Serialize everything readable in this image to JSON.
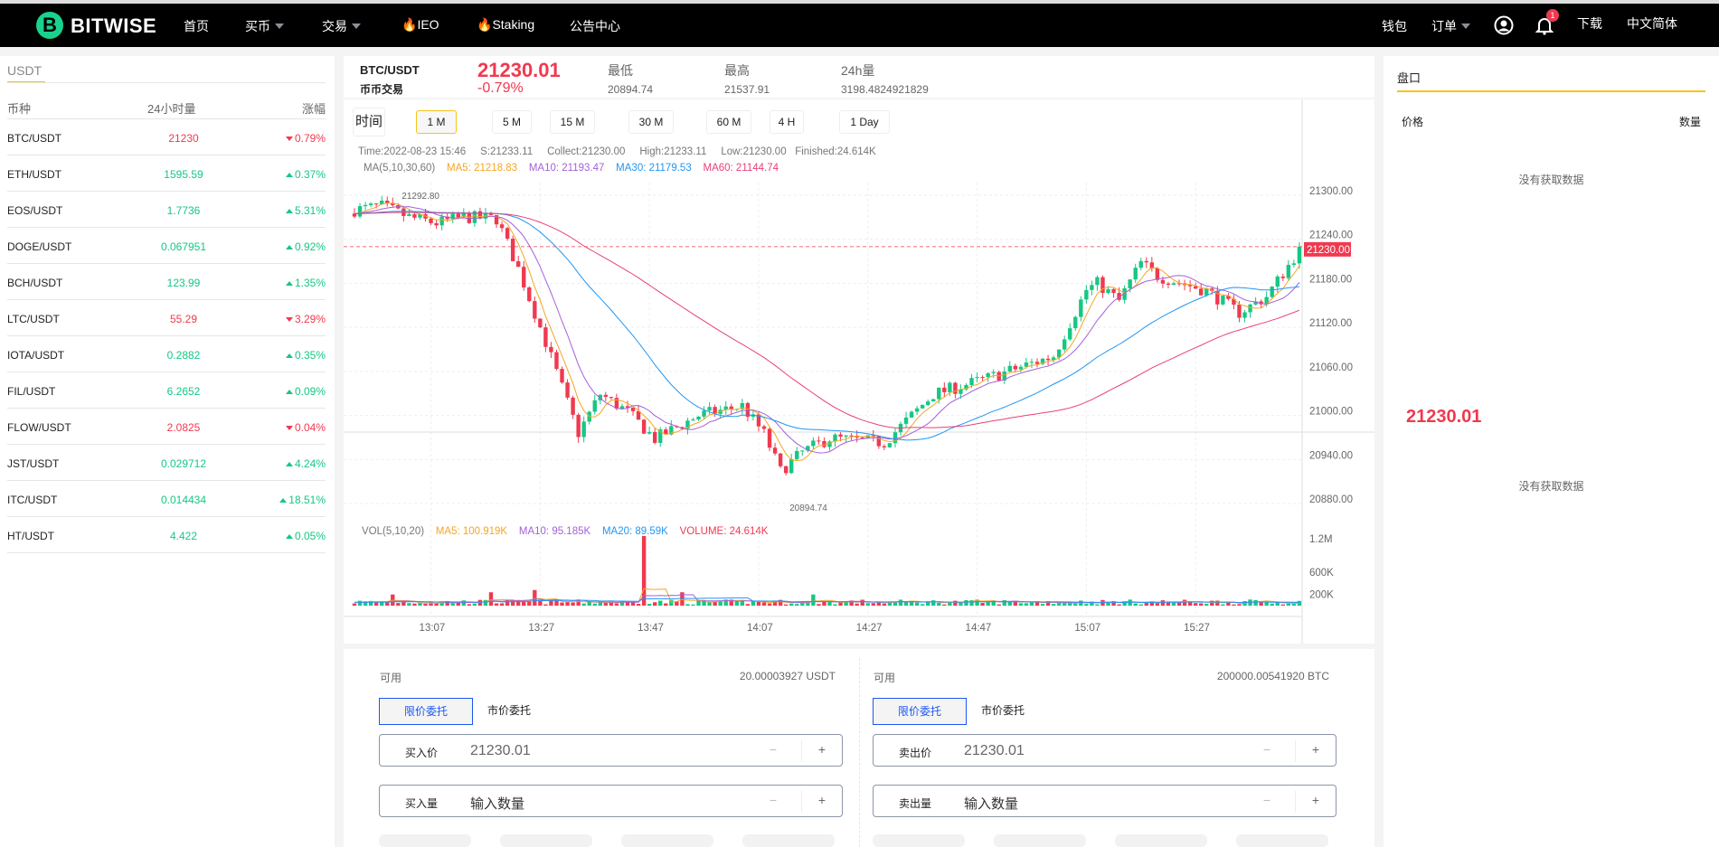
{
  "nav": {
    "brand": "BITWISE",
    "items": [
      "首页",
      "买币",
      "交易",
      "IEO",
      "Staking",
      "公告中心"
    ],
    "wallet": "钱包",
    "orders": "订单",
    "notif_count": "1",
    "download": "下载",
    "language": "中文简体"
  },
  "market": {
    "tab": "USDT",
    "headers": [
      "币种",
      "24小时量",
      "涨幅"
    ],
    "rows": [
      {
        "pair": "BTC/USDT",
        "value": "21230",
        "change": "0.79%",
        "dir": "dn"
      },
      {
        "pair": "ETH/USDT",
        "value": "1595.59",
        "change": "0.37%",
        "dir": "up"
      },
      {
        "pair": "EOS/USDT",
        "value": "1.7736",
        "change": "5.31%",
        "dir": "up"
      },
      {
        "pair": "DOGE/USDT",
        "value": "0.067951",
        "change": "0.92%",
        "dir": "up"
      },
      {
        "pair": "BCH/USDT",
        "value": "123.99",
        "change": "1.35%",
        "dir": "up"
      },
      {
        "pair": "LTC/USDT",
        "value": "55.29",
        "change": "3.29%",
        "dir": "dn"
      },
      {
        "pair": "IOTA/USDT",
        "value": "0.2882",
        "change": "0.35%",
        "dir": "up"
      },
      {
        "pair": "FIL/USDT",
        "value": "6.2652",
        "change": "0.09%",
        "dir": "up"
      },
      {
        "pair": "FLOW/USDT",
        "value": "2.0825",
        "change": "0.04%",
        "dir": "dn"
      },
      {
        "pair": "JST/USDT",
        "value": "0.029712",
        "change": "4.24%",
        "dir": "up"
      },
      {
        "pair": "ITC/USDT",
        "value": "0.014434",
        "change": "18.51%",
        "dir": "up"
      },
      {
        "pair": "HT/USDT",
        "value": "4.422",
        "change": "0.05%",
        "dir": "up"
      }
    ]
  },
  "ticker": {
    "pair": "BTC/USDT",
    "type": "币币交易",
    "price": "21230.01",
    "change": "-0.79%",
    "low_label": "最低",
    "low": "20894.74",
    "high_label": "最高",
    "high": "21537.91",
    "vol_label": "24h量",
    "vol": "3198.4824921829"
  },
  "timeframes": {
    "label": "时间",
    "options": [
      "1 M",
      "5 M",
      "15 M",
      "30 M",
      "60 M",
      "4 H",
      "1 Day"
    ],
    "active": "1 M"
  },
  "chart_info": {
    "line1": [
      "Time:2022-08-23 15:46",
      "S:21233.11",
      "Collect:21230.00",
      "High:21233.11",
      "Low:21230.00",
      "Finished:24.614K"
    ],
    "ma_label": "MA(5,10,30,60)",
    "ma5": "MA5: 21218.83",
    "ma10": "MA10: 21193.47",
    "ma30": "MA30: 21179.53",
    "ma60": "MA60: 21144.74",
    "vol_label": "VOL(5,10,20)",
    "vma5": "MA5: 100.919K",
    "vma10": "MA10: 95.185K",
    "vma20": "MA20: 89.59K",
    "volume": "VOLUME: 24.614K"
  },
  "chart_data": {
    "type": "candlestick",
    "start_time": "12:53",
    "interval_min": 1,
    "close_keypoints": [
      [
        0,
        21280
      ],
      [
        5,
        21285
      ],
      [
        10,
        21270
      ],
      [
        15,
        21262
      ],
      [
        20,
        21270
      ],
      [
        26,
        21268
      ],
      [
        30,
        21200
      ],
      [
        35,
        21100
      ],
      [
        41,
        20976
      ],
      [
        45,
        21029
      ],
      [
        50,
        21005
      ],
      [
        55,
        20968
      ],
      [
        63,
        21000
      ],
      [
        71,
        21013
      ],
      [
        75,
        20975
      ],
      [
        78,
        20924
      ],
      [
        82,
        20950
      ],
      [
        87,
        20969
      ],
      [
        97,
        20963
      ],
      [
        106,
        21029
      ],
      [
        116,
        21051
      ],
      [
        128,
        21081
      ],
      [
        134,
        21171
      ],
      [
        136,
        21180
      ],
      [
        140,
        21156
      ],
      [
        144,
        21208
      ],
      [
        147,
        21190
      ],
      [
        156,
        21170
      ],
      [
        162,
        21140
      ],
      [
        167,
        21162
      ],
      [
        172,
        21215
      ],
      [
        173,
        21230
      ]
    ],
    "volume_spikes": [
      [
        53,
        1250000
      ],
      [
        7,
        200000
      ],
      [
        25,
        240000
      ],
      [
        33,
        280000
      ],
      [
        60,
        240000
      ],
      [
        84,
        200000
      ]
    ],
    "y_ticks": [
      "21300.00",
      "21240.00",
      "21180.00",
      "21120.00",
      "21060.00",
      "21000.00",
      "20940.00",
      "20880.00"
    ],
    "ylim": [
      20860,
      21320
    ],
    "vol_ticks": [
      "1.2M",
      "600K",
      "200K"
    ],
    "x_ticks": [
      "13:07",
      "13:27",
      "13:47",
      "14:07",
      "14:27",
      "14:47",
      "15:07",
      "15:27"
    ],
    "max_label": "21292.80",
    "min_label": "20894.74",
    "last_price": "21230.00",
    "colors": {
      "up": "#16c784",
      "down": "#f0394f",
      "ma5": "#f5a623",
      "ma10": "#a461d8",
      "ma30": "#2196f3",
      "ma60": "#e8407a"
    }
  },
  "orderbook": {
    "title": "盘口",
    "price": "价格",
    "qty": "数量",
    "empty_top": "没有获取数据",
    "mid_price": "21230.01",
    "empty_bottom": "没有获取数据"
  },
  "buy": {
    "avail_label": "可用",
    "avail": "20.00003927 USDT",
    "limit": "限价委托",
    "market": "市价委托",
    "price_label": "买入价",
    "price": "21230.01",
    "qty_label": "买入量",
    "qty_ph": "输入数量",
    "minus": "−",
    "plus": "+"
  },
  "sell": {
    "avail_label": "可用",
    "avail": "200000.00541920 BTC",
    "limit": "限价委托",
    "market": "市价委托",
    "price_label": "卖出价",
    "price": "21230.01",
    "qty_label": "卖出量",
    "qty_ph": "输入数量",
    "minus": "−",
    "plus": "+"
  }
}
